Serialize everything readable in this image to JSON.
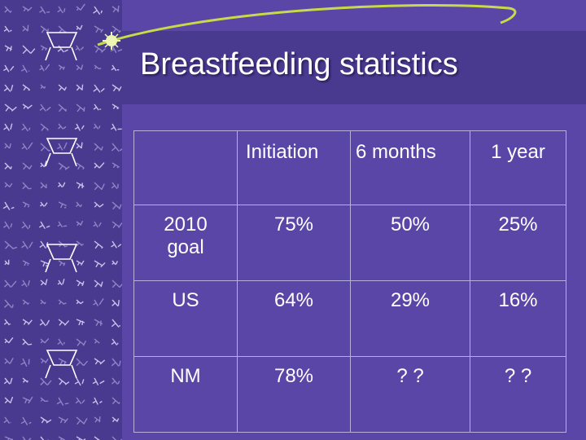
{
  "title": "Breastfeeding statistics",
  "table": {
    "headers": [
      "",
      "Initiation",
      "6 months",
      "1 year"
    ],
    "rows": [
      {
        "label_line1": "2010",
        "label_line2": "goal",
        "initiation": "75%",
        "six_months": "50%",
        "one_year": "25%"
      },
      {
        "label_line1": "US",
        "label_line2": "",
        "initiation": "64%",
        "six_months": "29%",
        "one_year": "16%"
      },
      {
        "label_line1": "NM",
        "label_line2": "",
        "initiation": "78%",
        "six_months": "? ?",
        "one_year": "? ?"
      }
    ]
  },
  "colors": {
    "background": "#5a46a6",
    "band": "#4a3a8f",
    "accent": "#c8d94a",
    "text": "#ffffff"
  }
}
